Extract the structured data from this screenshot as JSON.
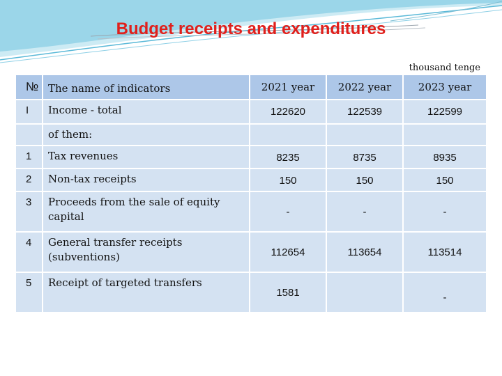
{
  "title": "Budget receipts and expenditures",
  "unit_note": "thousand tenge",
  "table": {
    "header": {
      "no": "№",
      "name": "The name of indicators",
      "years": [
        "2021 year",
        "2022 year",
        "2023 year"
      ]
    },
    "income_row": {
      "no": "I",
      "name": "Income - total",
      "values": [
        "122620",
        "122539",
        "122599"
      ]
    },
    "of_them_label": "of them:",
    "rows": [
      {
        "no": "1",
        "name": "Tax revenues",
        "values": [
          "8235",
          "8735",
          "8935"
        ]
      },
      {
        "no": "2",
        "name": "Non-tax receipts",
        "values": [
          "150",
          "150",
          "150"
        ]
      },
      {
        "no": "3",
        "name": "Proceeds from the sale of equity capital",
        "values": [
          "-",
          "-",
          "-"
        ]
      },
      {
        "no": "4",
        "name": "General transfer receipts (subventions)",
        "values": [
          "112654",
          "113654",
          "113514"
        ]
      },
      {
        "no": "5",
        "name": "Receipt of targeted transfers",
        "values": [
          "1581",
          "",
          "-"
        ]
      }
    ]
  },
  "colors": {
    "title": "#e0201c",
    "header_bg": "#adc7e8",
    "row_bg": "#d4e2f2"
  }
}
